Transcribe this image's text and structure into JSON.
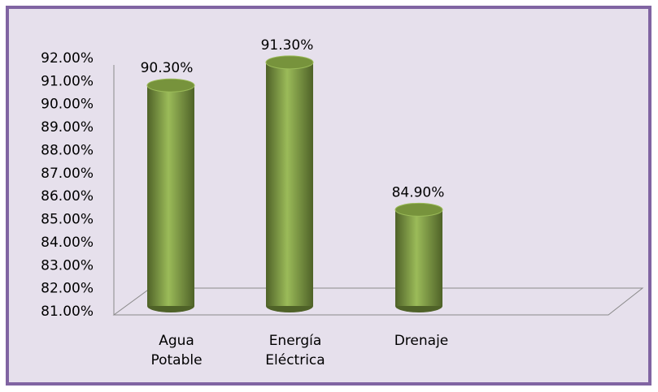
{
  "chart_data": {
    "type": "bar",
    "categories": [
      "Agua Potable",
      "Energía Eléctrica",
      "Drenaje"
    ],
    "values": [
      90.3,
      91.3,
      84.9
    ],
    "value_labels": [
      "90.30%",
      "91.30%",
      "84.90%"
    ],
    "color": "#77933c",
    "ylim": [
      81,
      92
    ],
    "yticks": [
      {
        "value": 81,
        "label": "81.00%"
      },
      {
        "value": 82,
        "label": "82.00%"
      },
      {
        "value": 83,
        "label": "83.00%"
      },
      {
        "value": 84,
        "label": "84.00%"
      },
      {
        "value": 85,
        "label": "85.00%"
      },
      {
        "value": 86,
        "label": "86.00%"
      },
      {
        "value": 87,
        "label": "87.00%"
      },
      {
        "value": 88,
        "label": "88.00%"
      },
      {
        "value": 89,
        "label": "89.00%"
      },
      {
        "value": 90,
        "label": "90.00%"
      },
      {
        "value": 91,
        "label": "91.00%"
      },
      {
        "value": 92,
        "label": "92.00%"
      }
    ],
    "grid": false
  }
}
